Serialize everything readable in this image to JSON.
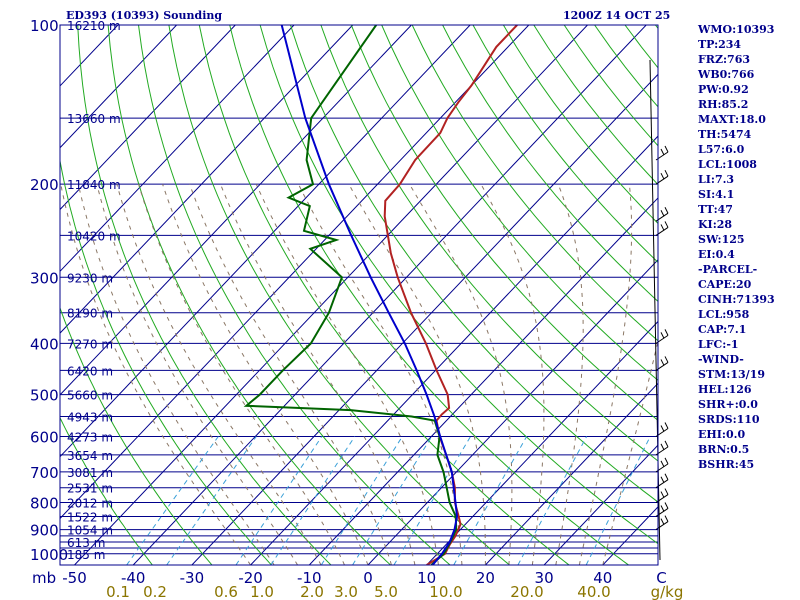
{
  "header": {
    "title": "ED393 (10393) Sounding",
    "time": "1200Z 14 OCT 25"
  },
  "indices": [
    "WMO:10393",
    "TP:234",
    "FRZ:763",
    "WB0:766",
    "PW:0.92",
    "RH:85.2",
    "MAXT:18.0",
    "TH:5474",
    "L57:6.0",
    "LCL:1008",
    "LI:7.3",
    "SI:4.1",
    "TT:47",
    "KI:28",
    "SW:125",
    "EI:0.4",
    "-PARCEL-",
    "CAPE:20",
    "CINH:71393",
    "LCL:958",
    "CAP:7.1",
    "LFC:-1",
    "-WIND-",
    "STM:13/19",
    "HEL:126",
    "SHR+:0.0",
    "SRDS:110",
    "EHI:0.0",
    "BRN:0.5",
    "BSHR:45"
  ],
  "colors": {
    "isobar": "#00008b",
    "isotherm": "#00008b",
    "dry_adiabat": "#22aa22",
    "moist_adiabat": "#8b7765",
    "mixing_ratio": "#3aa0d8",
    "temperature": "#b22222",
    "dewpoint": "#006400",
    "parcel": "#0000cc",
    "label_pressure": "#00008b",
    "label_temp": "#00008b",
    "label_mixing": "#8b7500"
  },
  "chart_data": {
    "type": "line",
    "title": "ED393 (10393) Sounding",
    "xlabel": "°C",
    "ylabel": "mb",
    "pressure_ticks": [
      "100",
      "200",
      "300",
      "400",
      "500",
      "600",
      "700",
      "800",
      "900",
      "1000"
    ],
    "pressure_levels": [
      100,
      200,
      300,
      400,
      500,
      600,
      700,
      800,
      900,
      1000
    ],
    "extra_isobars": [
      150,
      250,
      350,
      450,
      550,
      650,
      750,
      850,
      925,
      950,
      975
    ],
    "height_labels": [
      {
        "p": 100,
        "label": "16210 m"
      },
      {
        "p": 150,
        "label": "13660 m"
      },
      {
        "p": 200,
        "label": "11840 m"
      },
      {
        "p": 250,
        "label": "10420 m"
      },
      {
        "p": 300,
        "label": "9230 m"
      },
      {
        "p": 350,
        "label": "8190 m"
      },
      {
        "p": 400,
        "label": "7270 m"
      },
      {
        "p": 450,
        "label": "6420 m"
      },
      {
        "p": 500,
        "label": "5660 m"
      },
      {
        "p": 550,
        "label": "4943 m"
      },
      {
        "p": 600,
        "label": "4273 m"
      },
      {
        "p": 650,
        "label": "3654 m"
      },
      {
        "p": 700,
        "label": "3081 m"
      },
      {
        "p": 750,
        "label": "2531 m"
      },
      {
        "p": 800,
        "label": "2012 m"
      },
      {
        "p": 850,
        "label": "1522 m"
      },
      {
        "p": 900,
        "label": "1054 m"
      },
      {
        "p": 950,
        "label": "613 m"
      },
      {
        "p": 1000,
        "label": "185 m"
      }
    ],
    "x_unit_label": "mb",
    "x_ticks": [
      "-50",
      "-40",
      "-30",
      "-20",
      "-10",
      "0",
      "10",
      "20",
      "30",
      "40",
      "C"
    ],
    "x_tick_values": [
      -50,
      -40,
      -30,
      -20,
      -10,
      0,
      10,
      20,
      30,
      40,
      50
    ],
    "mixing_ratio_ticks": [
      "0.1",
      "0.2",
      "0.6",
      "1.0",
      "2.0",
      "3.0",
      "5.0",
      "10.0",
      "20.0",
      "40.0",
      "g/kg"
    ],
    "xlim": [
      -50,
      50
    ],
    "ylim": [
      100,
      1050
    ],
    "series": [
      {
        "name": "temperature",
        "points": [
          [
            1050,
            10
          ],
          [
            1000,
            11.3
          ],
          [
            960,
            10.6
          ],
          [
            925,
            10.2
          ],
          [
            880,
            9.2
          ],
          [
            850,
            7.6
          ],
          [
            800,
            4.7
          ],
          [
            750,
            2.3
          ],
          [
            700,
            -0.8
          ],
          [
            650,
            -4.5
          ],
          [
            600,
            -8.6
          ],
          [
            560,
            -11.7
          ],
          [
            545,
            -11.8
          ],
          [
            530,
            -11.6
          ],
          [
            500,
            -14.0
          ],
          [
            450,
            -19.8
          ],
          [
            400,
            -26.0
          ],
          [
            350,
            -33.5
          ],
          [
            300,
            -41.5
          ],
          [
            270,
            -46.6
          ],
          [
            230,
            -53.6
          ],
          [
            215,
            -56
          ],
          [
            200,
            -56.2
          ],
          [
            180,
            -57.5
          ],
          [
            160,
            -57.6
          ],
          [
            150,
            -58.8
          ],
          [
            140,
            -59.5
          ],
          [
            130,
            -60
          ],
          [
            110,
            -62
          ],
          [
            100,
            -62
          ]
        ]
      },
      {
        "name": "dewpoint",
        "points": [
          [
            1050,
            10.8
          ],
          [
            1000,
            11.1
          ],
          [
            950,
            10.3
          ],
          [
            900,
            9.3
          ],
          [
            850,
            7.1
          ],
          [
            800,
            3.8
          ],
          [
            750,
            0.9
          ],
          [
            700,
            -2.2
          ],
          [
            650,
            -6.0
          ],
          [
            600,
            -8.6
          ],
          [
            560,
            -12
          ],
          [
            550,
            -16.6
          ],
          [
            535,
            -28
          ],
          [
            530,
            -37
          ],
          [
            525,
            -46.5
          ],
          [
            500,
            -46
          ],
          [
            450,
            -46
          ],
          [
            400,
            -45.6
          ],
          [
            350,
            -47.5
          ],
          [
            300,
            -51
          ],
          [
            265,
            -61
          ],
          [
            255,
            -58
          ],
          [
            245,
            -65
          ],
          [
            220,
            -68
          ],
          [
            212,
            -73
          ],
          [
            200,
            -71
          ],
          [
            180,
            -76
          ],
          [
            150,
            -82
          ],
          [
            100,
            -86
          ]
        ]
      },
      {
        "name": "parcel",
        "points": [
          [
            1050,
            11
          ],
          [
            1000,
            10.8
          ],
          [
            950,
            10.2
          ],
          [
            900,
            9.0
          ],
          [
            850,
            7.3
          ],
          [
            800,
            4.8
          ],
          [
            750,
            2.1
          ],
          [
            700,
            -0.8
          ],
          [
            650,
            -4.5
          ],
          [
            600,
            -8.5
          ],
          [
            550,
            -12.7
          ],
          [
            500,
            -17.6
          ],
          [
            450,
            -23.2
          ],
          [
            400,
            -29.6
          ],
          [
            350,
            -37.3
          ],
          [
            300,
            -46.1
          ],
          [
            250,
            -56.2
          ],
          [
            200,
            -68.3
          ],
          [
            150,
            -83.0
          ],
          [
            100,
            -102.1
          ]
        ]
      }
    ],
    "wind_barbs_at": [
      180,
      200,
      235,
      250,
      400,
      450,
      600,
      650,
      700,
      750,
      800,
      850,
      900
    ]
  }
}
